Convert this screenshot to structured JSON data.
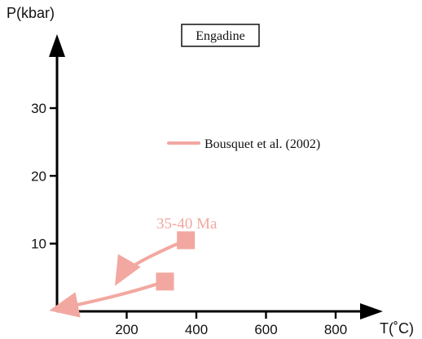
{
  "chart_data": {
    "type": "line",
    "title": "Engadine",
    "xlabel": "T(˚C)",
    "ylabel": "P(kbar)",
    "xlim": [
      0,
      900
    ],
    "ylim": [
      0,
      40
    ],
    "x_ticks": [
      200,
      400,
      600,
      800
    ],
    "y_ticks": [
      10,
      20,
      30
    ],
    "grid": false,
    "legend": {
      "position": "right-middle",
      "label": "Bousquet et al. (2002)"
    },
    "color": "#f2a8a0",
    "series": [
      {
        "name": "Bousquet et al. (2002)",
        "points": [
          {
            "x": 370,
            "y": 10.5
          },
          {
            "x": 200,
            "y": 6.8
          },
          {
            "x": 180,
            "y": 5.0
          }
        ],
        "marker": {
          "x": 370,
          "y": 10.5
        },
        "annotation": "35-40 Ma"
      },
      {
        "name": "Bousquet et al. (2002)",
        "points": [
          {
            "x": 310,
            "y": 4.4
          },
          {
            "x": 180,
            "y": 2.2
          },
          {
            "x": 5,
            "y": 0.4
          }
        ],
        "marker": {
          "x": 310,
          "y": 4.4
        }
      }
    ]
  }
}
